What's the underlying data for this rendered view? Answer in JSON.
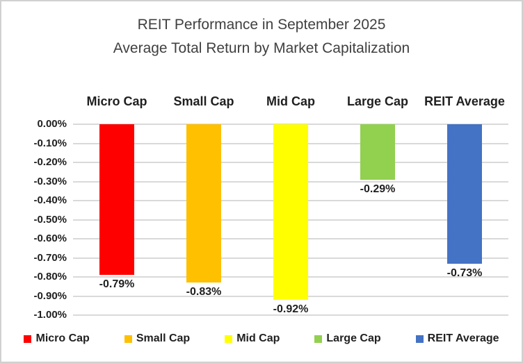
{
  "chart_data": {
    "type": "bar",
    "title": "REIT Performance in September 2025",
    "subtitle": "Average Total Return by Market Capitalization",
    "xlabel": "",
    "ylabel": "",
    "categories": [
      "Micro Cap",
      "Small Cap",
      "Mid Cap",
      "Large Cap",
      "REIT Average"
    ],
    "values": [
      -0.79,
      -0.83,
      -0.92,
      -0.29,
      -0.73
    ],
    "data_labels": [
      "-0.79%",
      "-0.83%",
      "-0.92%",
      "-0.29%",
      "-0.73%"
    ],
    "bar_colors": [
      "#FF0000",
      "#FFC000",
      "#FFFF00",
      "#92D050",
      "#4472C4"
    ],
    "y_ticks": [
      "0.00%",
      "-0.10%",
      "-0.20%",
      "-0.30%",
      "-0.40%",
      "-0.50%",
      "-0.60%",
      "-0.70%",
      "-0.80%",
      "-0.90%",
      "-1.00%"
    ],
    "ylim": [
      0,
      -1.0
    ],
    "grid": true,
    "gridline_color": "#D9D9D9",
    "legend_position": "bottom",
    "legend": [
      {
        "label": "Micro Cap",
        "color": "#FF0000"
      },
      {
        "label": "Small Cap",
        "color": "#FFC000"
      },
      {
        "label": "Mid Cap",
        "color": "#FFFF00"
      },
      {
        "label": "Large Cap",
        "color": "#92D050"
      },
      {
        "label": "REIT Average",
        "color": "#4472C4"
      }
    ]
  },
  "colors": {
    "background": "#FFFFFF",
    "border": "#D0D0D0",
    "title_text": "#404040",
    "label_text": "#1F1F1F"
  }
}
